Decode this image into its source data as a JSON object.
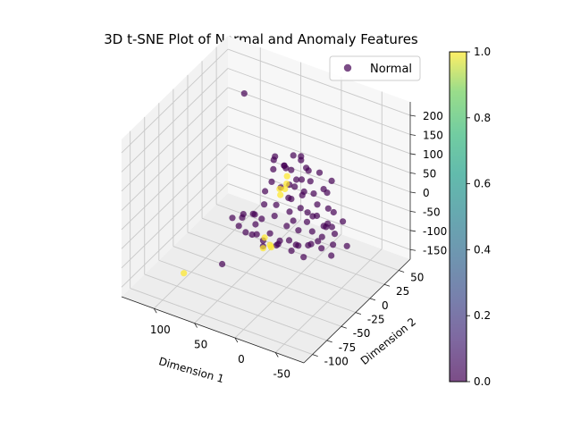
{
  "chart_data": {
    "type": "scatter",
    "projection": "3d",
    "title": "3D t-SNE Plot of Normal and Anomaly Features",
    "xlabel": "Dimension 1",
    "ylabel": "Dimension 2",
    "zlabel": "",
    "xlim": [
      -85,
      140
    ],
    "ylim": [
      -115,
      70
    ],
    "zlim": [
      -175,
      235
    ],
    "xticks": [
      -50,
      0,
      50,
      100
    ],
    "yticks": [
      -100,
      -75,
      -50,
      -25,
      0,
      25,
      50
    ],
    "zticks": [
      -150,
      -100,
      -50,
      0,
      50,
      100,
      150,
      200
    ],
    "grid": true,
    "colormap": "viridis",
    "alpha": 0.7,
    "legend": {
      "position": "top-right",
      "entries": [
        "Normal"
      ]
    },
    "colorbar": {
      "min": 0.0,
      "max": 1.0,
      "ticks": [
        "0.0",
        "0.2",
        "0.4",
        "0.6",
        "0.8",
        "1.0"
      ]
    },
    "colors": {
      "label_0": "#440154",
      "label_1": "#fde725"
    },
    "series": [
      {
        "name": "Normal",
        "label_value": 0,
        "points": [
          [
            -85,
            -40,
            20
          ],
          [
            95,
            35,
            170
          ],
          [
            30,
            -95,
            -35
          ],
          [
            -15,
            -10,
            10
          ],
          [
            -10,
            -15,
            25
          ],
          [
            -5,
            -5,
            40
          ],
          [
            0,
            -20,
            15
          ],
          [
            5,
            -10,
            30
          ],
          [
            -20,
            0,
            20
          ],
          [
            -12,
            5,
            35
          ],
          [
            2,
            8,
            25
          ],
          [
            8,
            0,
            45
          ],
          [
            -8,
            -25,
            5
          ],
          [
            -25,
            -15,
            15
          ],
          [
            12,
            -5,
            20
          ],
          [
            18,
            5,
            35
          ],
          [
            -3,
            12,
            50
          ],
          [
            10,
            15,
            40
          ],
          [
            -15,
            18,
            30
          ],
          [
            -30,
            5,
            10
          ],
          [
            20,
            -15,
            10
          ],
          [
            25,
            0,
            30
          ],
          [
            5,
            20,
            60
          ],
          [
            -18,
            -30,
            -5
          ],
          [
            15,
            -25,
            0
          ],
          [
            -40,
            -20,
            -20
          ],
          [
            -35,
            -10,
            -10
          ],
          [
            -45,
            -5,
            -30
          ],
          [
            -30,
            -30,
            -35
          ],
          [
            -50,
            -15,
            -40
          ],
          [
            -38,
            0,
            -25
          ],
          [
            -28,
            -22,
            -45
          ],
          [
            -42,
            -30,
            -15
          ],
          [
            -55,
            -25,
            -50
          ],
          [
            -33,
            10,
            -5
          ],
          [
            -48,
            5,
            -10
          ],
          [
            -35,
            -30,
            5
          ],
          [
            -25,
            -25,
            15
          ],
          [
            -45,
            -20,
            10
          ],
          [
            -30,
            -15,
            20
          ],
          [
            -40,
            -10,
            0
          ],
          [
            30,
            25,
            35
          ],
          [
            35,
            20,
            50
          ],
          [
            40,
            30,
            25
          ],
          [
            25,
            35,
            60
          ],
          [
            45,
            15,
            40
          ],
          [
            38,
            40,
            45
          ],
          [
            28,
            10,
            70
          ],
          [
            50,
            25,
            55
          ],
          [
            32,
            45,
            30
          ],
          [
            42,
            8,
            20
          ],
          [
            55,
            30,
            35
          ],
          [
            -10,
            -35,
            -30
          ],
          [
            0,
            -40,
            -40
          ],
          [
            -20,
            -45,
            -35
          ],
          [
            5,
            -30,
            -50
          ],
          [
            -5,
            -50,
            -25
          ],
          [
            10,
            -40,
            -20
          ],
          [
            -15,
            -30,
            -45
          ],
          [
            15,
            -45,
            -35
          ],
          [
            -25,
            -40,
            -25
          ],
          [
            0,
            -25,
            -15
          ],
          [
            35,
            -30,
            -30
          ],
          [
            45,
            -20,
            -25
          ],
          [
            40,
            -40,
            -40
          ],
          [
            50,
            -30,
            -15
          ],
          [
            30,
            -35,
            -45
          ],
          [
            55,
            -25,
            -35
          ],
          [
            45,
            -45,
            -20
          ],
          [
            38,
            -15,
            -40
          ],
          [
            60,
            -35,
            -25
          ],
          [
            42,
            -5,
            -20
          ],
          [
            50,
            -10,
            -45
          ],
          [
            -25,
            10,
            40
          ],
          [
            -5,
            25,
            55
          ],
          [
            15,
            30,
            45
          ],
          [
            20,
            20,
            25
          ],
          [
            -20,
            25,
            45
          ],
          [
            8,
            -55,
            -30
          ],
          [
            -35,
            -45,
            -40
          ],
          [
            25,
            -50,
            -20
          ],
          [
            -50,
            -35,
            -20
          ],
          [
            48,
            5,
            -5
          ]
        ]
      },
      {
        "name": "",
        "label_value": 1,
        "points": [
          [
            95,
            -70,
            -145
          ],
          [
            20,
            0,
            30
          ],
          [
            25,
            10,
            25
          ],
          [
            30,
            5,
            15
          ],
          [
            22,
            -5,
            20
          ],
          [
            28,
            15,
            35
          ],
          [
            10,
            -40,
            -50
          ],
          [
            15,
            -45,
            -55
          ],
          [
            5,
            -45,
            -45
          ],
          [
            18,
            -38,
            -40
          ]
        ]
      }
    ]
  }
}
